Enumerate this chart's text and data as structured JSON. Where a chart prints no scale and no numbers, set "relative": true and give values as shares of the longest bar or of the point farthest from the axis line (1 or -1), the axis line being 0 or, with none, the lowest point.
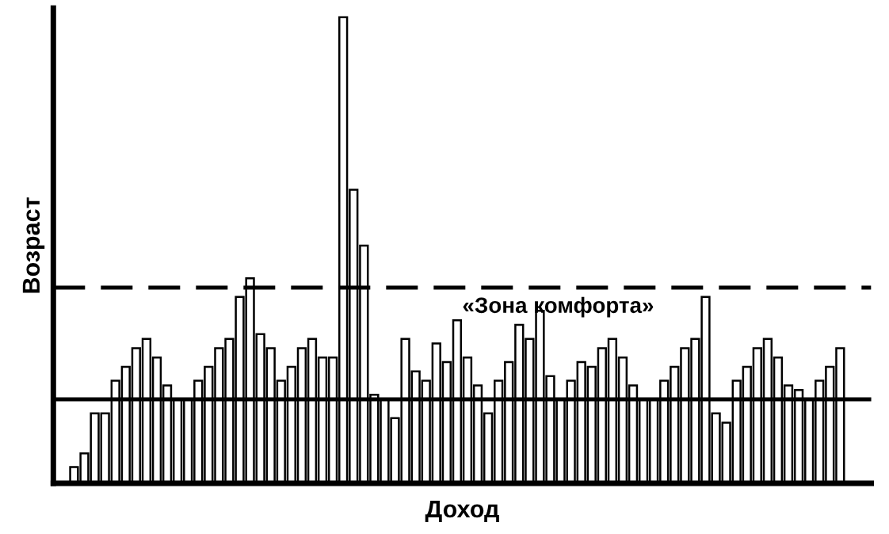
{
  "chart_data": {
    "type": "bar",
    "relative": true,
    "xlabel": "Доход",
    "ylabel": "Возраст",
    "color": "#ffffff",
    "categories": [
      null,
      null,
      null,
      null,
      null,
      null,
      null,
      null,
      null,
      null,
      null,
      null,
      null,
      null,
      null,
      null,
      null,
      null,
      null,
      null,
      null,
      null,
      null,
      null,
      null,
      null,
      null,
      null,
      null,
      null,
      null,
      null,
      null,
      null,
      null,
      null,
      null,
      null,
      null,
      null,
      null,
      null,
      null,
      null,
      null,
      null,
      null,
      null,
      null,
      null,
      null,
      null,
      null,
      null,
      null,
      null,
      null,
      null,
      null,
      null,
      null,
      null,
      null,
      null,
      null,
      null,
      null,
      null,
      null,
      null,
      null,
      null,
      null,
      null,
      null
    ],
    "values": [
      0.035,
      0.064,
      0.15,
      0.15,
      0.22,
      0.25,
      0.29,
      0.31,
      0.27,
      0.21,
      0.18,
      0.18,
      0.22,
      0.25,
      0.29,
      0.31,
      0.4,
      0.44,
      0.32,
      0.29,
      0.22,
      0.25,
      0.29,
      0.31,
      0.27,
      0.27,
      1,
      0.63,
      0.51,
      0.19,
      0.18,
      0.14,
      0.31,
      0.24,
      0.22,
      0.3,
      0.26,
      0.35,
      0.27,
      0.21,
      0.15,
      0.22,
      0.26,
      0.34,
      0.31,
      0.37,
      0.23,
      0.18,
      0.22,
      0.26,
      0.25,
      0.29,
      0.31,
      0.27,
      0.21,
      0.18,
      0.18,
      0.22,
      0.25,
      0.29,
      0.31,
      0.4,
      0.15,
      0.13,
      0.22,
      0.25,
      0.29,
      0.31,
      0.27,
      0.21,
      0.2,
      0.18,
      0.22,
      0.25,
      0.29
    ],
    "ref_lines": [
      {
        "axis": "y",
        "value": 0.18,
        "line_style": "solid",
        "color": "#000000"
      },
      {
        "axis": "y",
        "value": 0.42,
        "line_style": "dashed",
        "color": "#000000",
        "label": "«Зона комфорта»"
      }
    ],
    "grid": false,
    "legend": false
  }
}
